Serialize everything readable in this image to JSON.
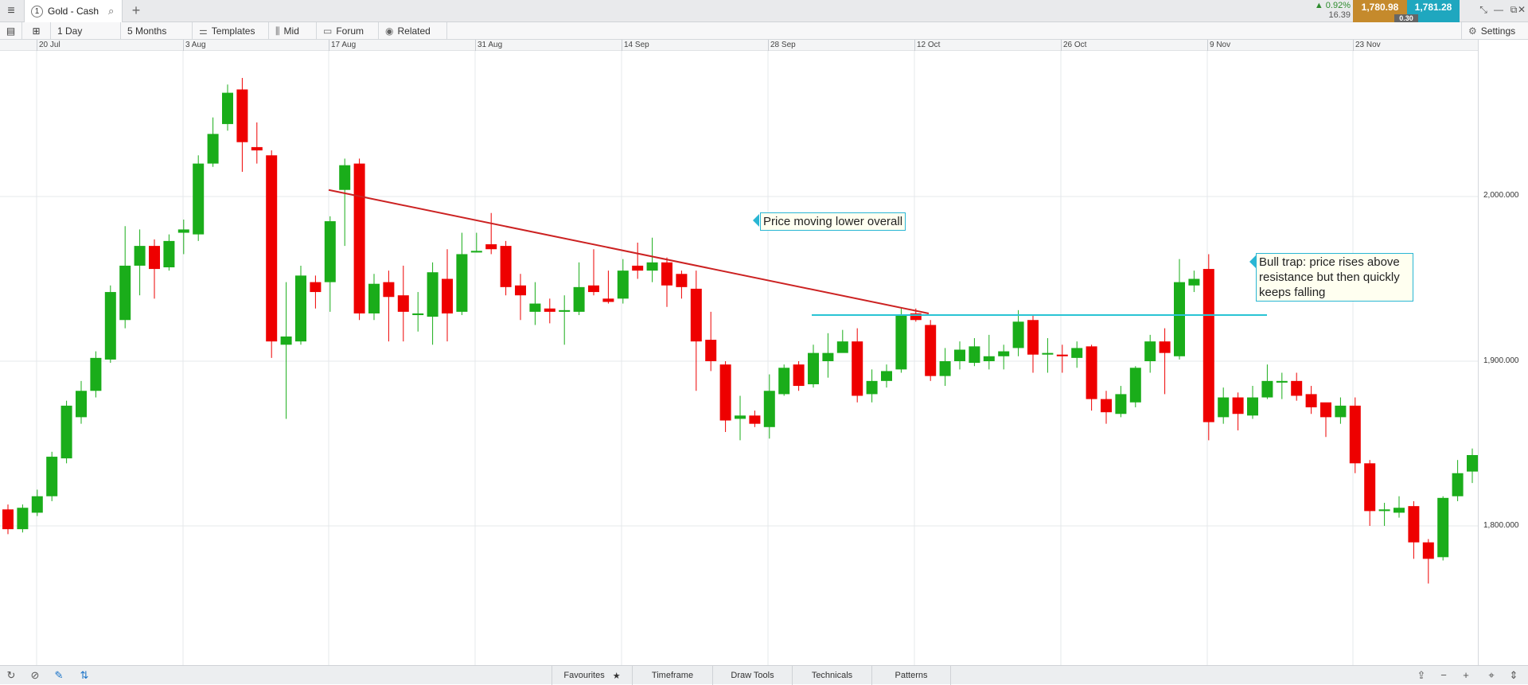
{
  "topbar": {
    "tab_number": "1",
    "tab_title": "Gold - Cash",
    "change_pct": "▲ 0.92%",
    "change_abs": "16.39",
    "bid": "1,780.98",
    "ask": "1,781.28",
    "spread": "0.30"
  },
  "toolbar": {
    "interval": "1 Day",
    "range": "5 Months",
    "templates": "Templates",
    "price_type": "Mid",
    "forum": "Forum",
    "related": "Related",
    "settings": "Settings"
  },
  "bottombar": {
    "favourites": "Favourites",
    "timeframe": "Timeframe",
    "draw_tools": "Draw Tools",
    "technicals": "Technicals",
    "patterns": "Patterns"
  },
  "annotations": {
    "lower": "Price moving lower overall",
    "bull_trap": "Bull trap: price rises above resistance but then quickly keeps falling"
  },
  "colors": {
    "up": "#1aad1a",
    "down": "#ee0000",
    "trendline": "#cc2222",
    "resistance": "#29c4d4"
  },
  "chart_data": {
    "type": "candlestick",
    "instrument": "Gold - Cash",
    "interval": "1 Day",
    "x_ticks": [
      "20 Jul",
      "3 Aug",
      "17 Aug",
      "31 Aug",
      "14 Sep",
      "28 Sep",
      "12 Oct",
      "26 Oct",
      "9 Nov",
      "23 Nov"
    ],
    "y_ticks": [
      "2,000.000",
      "1,900.000",
      "1,800.000"
    ],
    "ylim": [
      1725,
      2090
    ],
    "candles": [
      [
        1810,
        1798,
        1813,
        1795
      ],
      [
        1798,
        1811,
        1813,
        1796
      ],
      [
        1808,
        1818,
        1822,
        1806
      ],
      [
        1818,
        1842,
        1845,
        1815
      ],
      [
        1841,
        1873,
        1876,
        1838
      ],
      [
        1866,
        1882,
        1888,
        1862
      ],
      [
        1882,
        1902,
        1906,
        1878
      ],
      [
        1901,
        1942,
        1946,
        1899
      ],
      [
        1925,
        1958,
        1982,
        1920
      ],
      [
        1958,
        1970,
        1980,
        1940
      ],
      [
        1970,
        1956,
        1974,
        1938
      ],
      [
        1957,
        1973,
        1977,
        1955
      ],
      [
        1978,
        1980,
        1986,
        1965
      ],
      [
        1977,
        2020,
        2025,
        1973
      ],
      [
        2020,
        2038,
        2048,
        2018
      ],
      [
        2044,
        2063,
        2068,
        2040
      ],
      [
        2065,
        2033,
        2072,
        2015
      ],
      [
        2030,
        2028,
        2045,
        2020
      ],
      [
        2025,
        1912,
        2028,
        1902
      ],
      [
        1910,
        1915,
        1948,
        1865
      ],
      [
        1912,
        1952,
        1958,
        1910
      ],
      [
        1948,
        1942,
        1952,
        1932
      ],
      [
        1948,
        1985,
        1988,
        1930
      ],
      [
        2004,
        2019,
        2023,
        1970
      ],
      [
        2020,
        1929,
        2023,
        1925
      ],
      [
        1929,
        1947,
        1953,
        1925
      ],
      [
        1948,
        1939,
        1955,
        1912
      ],
      [
        1940,
        1930,
        1958,
        1912
      ],
      [
        1928,
        1929,
        1942,
        1918
      ],
      [
        1927,
        1954,
        1960,
        1910
      ],
      [
        1950,
        1929,
        1968,
        1912
      ],
      [
        1930,
        1965,
        1978,
        1928
      ],
      [
        1966,
        1967,
        1978,
        1966
      ],
      [
        1971,
        1968,
        1990,
        1965
      ],
      [
        1970,
        1945,
        1973,
        1940
      ],
      [
        1946,
        1940,
        1953,
        1925
      ],
      [
        1930,
        1935,
        1948,
        1922
      ],
      [
        1932,
        1930,
        1938,
        1923
      ],
      [
        1930,
        1931,
        1940,
        1910
      ],
      [
        1930,
        1945,
        1960,
        1928
      ],
      [
        1946,
        1942,
        1968,
        1940
      ],
      [
        1938,
        1936,
        1955,
        1935
      ],
      [
        1938,
        1955,
        1962,
        1935
      ],
      [
        1958,
        1955,
        1972,
        1950
      ],
      [
        1955,
        1960,
        1975,
        1948
      ],
      [
        1960,
        1946,
        1963,
        1933
      ],
      [
        1953,
        1945,
        1955,
        1938
      ],
      [
        1944,
        1912,
        1955,
        1882
      ],
      [
        1913,
        1900,
        1930,
        1894
      ],
      [
        1898,
        1864,
        1900,
        1857
      ],
      [
        1865,
        1867,
        1879,
        1852
      ],
      [
        1867,
        1862,
        1870,
        1860
      ],
      [
        1860,
        1882,
        1892,
        1853
      ],
      [
        1880,
        1896,
        1898,
        1879
      ],
      [
        1898,
        1885,
        1900,
        1882
      ],
      [
        1886,
        1905,
        1910,
        1884
      ],
      [
        1900,
        1905,
        1917,
        1890
      ],
      [
        1905,
        1912,
        1919,
        1906
      ],
      [
        1912,
        1879,
        1920,
        1875
      ],
      [
        1880,
        1888,
        1895,
        1875
      ],
      [
        1888,
        1894,
        1898,
        1884
      ],
      [
        1895,
        1928,
        1932,
        1893
      ],
      [
        1929,
        1925,
        1932,
        1924
      ],
      [
        1922,
        1891,
        1925,
        1888
      ],
      [
        1891,
        1900,
        1908,
        1885
      ],
      [
        1900,
        1907,
        1912,
        1895
      ],
      [
        1899,
        1909,
        1914,
        1897
      ],
      [
        1900,
        1903,
        1916,
        1895
      ],
      [
        1903,
        1906,
        1910,
        1895
      ],
      [
        1908,
        1924,
        1931,
        1903
      ],
      [
        1925,
        1904,
        1928,
        1893
      ],
      [
        1904,
        1905,
        1914,
        1893
      ],
      [
        1904,
        1903,
        1910,
        1893
      ],
      [
        1902,
        1908,
        1912,
        1896
      ],
      [
        1909,
        1877,
        1910,
        1870
      ],
      [
        1877,
        1869,
        1882,
        1862
      ],
      [
        1868,
        1880,
        1885,
        1866
      ],
      [
        1875,
        1896,
        1897,
        1872
      ],
      [
        1900,
        1912,
        1916,
        1893
      ],
      [
        1912,
        1905,
        1920,
        1880
      ],
      [
        1903,
        1948,
        1962,
        1901
      ],
      [
        1946,
        1950,
        1955,
        1942
      ],
      [
        1956,
        1863,
        1965,
        1852
      ],
      [
        1866,
        1878,
        1884,
        1862
      ],
      [
        1878,
        1868,
        1881,
        1858
      ],
      [
        1867,
        1878,
        1885,
        1865
      ],
      [
        1878,
        1888,
        1898,
        1877
      ],
      [
        1887,
        1888,
        1893,
        1877
      ],
      [
        1888,
        1879,
        1893,
        1876
      ],
      [
        1880,
        1872,
        1885,
        1868
      ],
      [
        1875,
        1866,
        1873,
        1854
      ],
      [
        1866,
        1873,
        1878,
        1862
      ],
      [
        1873,
        1838,
        1878,
        1832
      ],
      [
        1838,
        1809,
        1840,
        1800
      ],
      [
        1809,
        1810,
        1814,
        1800
      ],
      [
        1808,
        1811,
        1818,
        1805
      ],
      [
        1812,
        1790,
        1815,
        1780
      ],
      [
        1790,
        1780,
        1792,
        1765
      ],
      [
        1781,
        1817,
        1818,
        1779
      ],
      [
        1818,
        1832,
        1840,
        1815
      ],
      [
        1833,
        1843,
        1847,
        1826
      ]
    ],
    "trendline": [
      [
        2004,
        "17 Aug"
      ],
      [
        1929,
        "12 Oct"
      ]
    ],
    "resistance_level": 1928,
    "grid": true
  }
}
